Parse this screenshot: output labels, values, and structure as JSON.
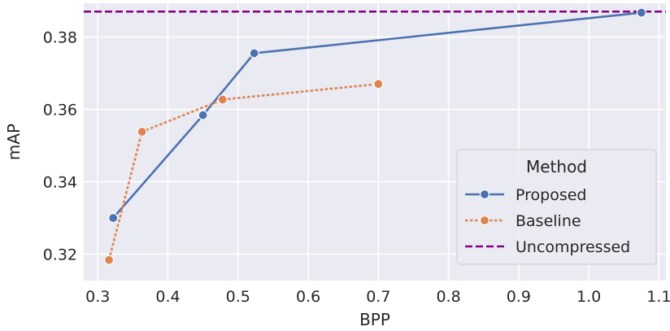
{
  "chart_data": {
    "type": "line",
    "xlabel": "BPP",
    "ylabel": "mAP",
    "xlim": [
      0.28,
      1.11
    ],
    "ylim": [
      0.3127,
      0.3893
    ],
    "xticks": [
      0.3,
      0.4,
      0.5,
      0.6,
      0.7,
      0.8,
      0.9,
      1.0,
      1.1
    ],
    "yticks": [
      0.32,
      0.34,
      0.36,
      0.38
    ],
    "xtick_labels": [
      "0.3",
      "0.4",
      "0.5",
      "0.6",
      "0.7",
      "0.8",
      "0.9",
      "1.0",
      "1.1"
    ],
    "ytick_labels": [
      "0.32",
      "0.34",
      "0.36",
      "0.38"
    ],
    "grid": true,
    "legend": {
      "title": "Method",
      "placement": "lower-right"
    },
    "series": [
      {
        "name": "Proposed",
        "color": "#4C72B0",
        "linestyle": "solid",
        "marker": "circle",
        "x": [
          0.322,
          0.45,
          0.523,
          1.075
        ],
        "y": [
          0.33,
          0.3584,
          0.3755,
          0.3867
        ]
      },
      {
        "name": "Baseline",
        "color": "#DD8452",
        "linestyle": "dotted",
        "marker": "circle",
        "x": [
          0.316,
          0.363,
          0.478,
          0.7
        ],
        "y": [
          0.3184,
          0.3538,
          0.3627,
          0.367
        ]
      },
      {
        "name": "Uncompressed",
        "color": "#800080",
        "linestyle": "dashed",
        "marker": "none",
        "horizontal_line": true,
        "y": 0.387
      }
    ]
  }
}
